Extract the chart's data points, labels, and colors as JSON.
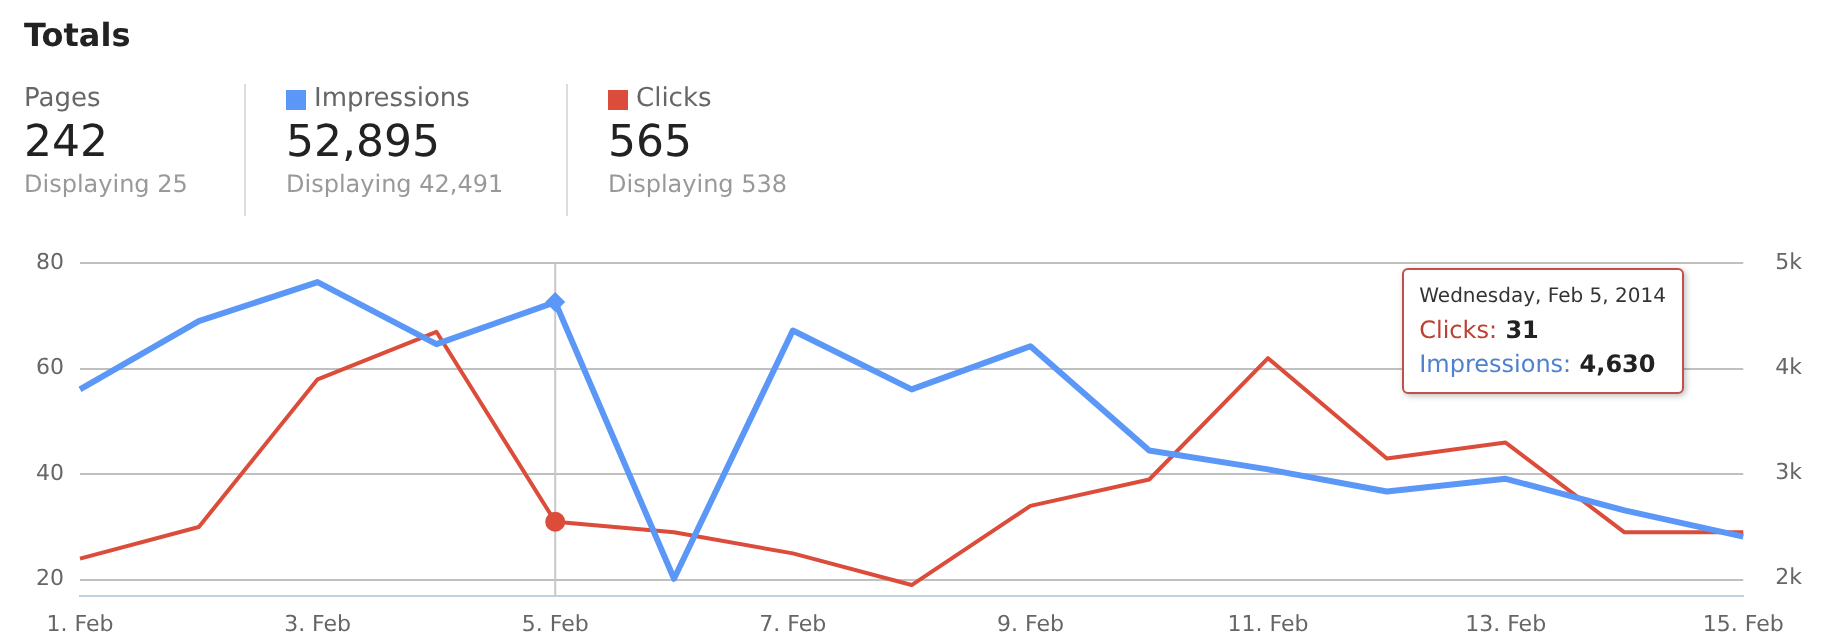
{
  "chart_data": {
    "type": "line",
    "title": "Totals",
    "categories": [
      "1. Feb",
      null,
      "3. Feb",
      null,
      "5. Feb",
      null,
      "7. Feb",
      null,
      "9. Feb",
      null,
      "11. Feb",
      null,
      "13. Feb",
      null,
      "15. Feb"
    ],
    "series": [
      {
        "name": "Impressions",
        "color": "#5b97f6",
        "axis": "y2",
        "values": [
          3800,
          4450,
          4820,
          4230,
          4630,
          2000,
          4360,
          3800,
          4210,
          3220,
          3040,
          2830,
          2950,
          2650,
          2400
        ]
      },
      {
        "name": "Clicks",
        "color": "#dc4c3a",
        "values": [
          24,
          30,
          58,
          67,
          31,
          29,
          25,
          19,
          34,
          39,
          62,
          43,
          46,
          29,
          29
        ]
      }
    ],
    "ylim": [
      17,
      80
    ],
    "yticks": [
      20,
      40,
      60,
      80
    ],
    "y2lim": [
      1840,
      5000
    ],
    "y2ticks": [
      {
        "value": 2000,
        "label": "2k"
      },
      {
        "value": 3000,
        "label": "3k"
      },
      {
        "value": 4000,
        "label": "4k"
      },
      {
        "value": 5000,
        "label": "5k"
      }
    ],
    "grid": "y",
    "legend": "top left",
    "ref_lines": [
      {
        "axis": "x",
        "value": "5. Feb",
        "color": "#c8c8c8"
      }
    ],
    "annotations": [
      "Pages",
      "242",
      "Displaying 25",
      "52,895",
      "Displaying 42,491",
      "565",
      "Displaying 538",
      "Wednesday, Feb 5, 2014",
      "Clicks: 31",
      "Impressions: 4,630"
    ]
  }
}
